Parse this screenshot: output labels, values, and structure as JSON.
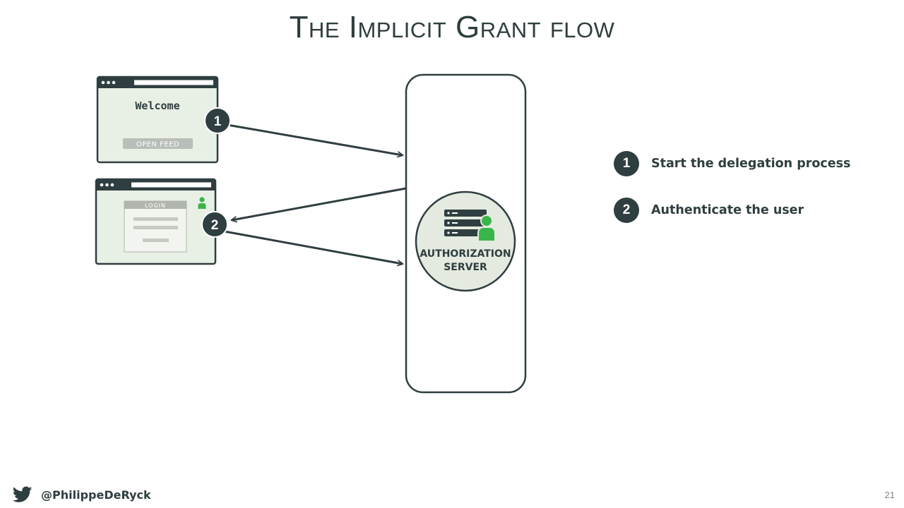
{
  "title": "The Implicit Grant flow",
  "browser1": {
    "heading": "Welcome",
    "button_label": "OPEN FEED"
  },
  "browser2": {
    "form_label": "LOGIN"
  },
  "steps": [
    {
      "number": "1",
      "label": "Start the delegation process"
    },
    {
      "number": "2",
      "label": "Authenticate the user"
    }
  ],
  "server": {
    "line1": "AUTHORIZATION",
    "line2": "SERVER"
  },
  "footer": {
    "handle": "@PhilippeDeRyck",
    "icon": "twitter-bird-icon"
  },
  "page_number": "21",
  "colors": {
    "dark": "#2f3e40",
    "panel": "#e8efe4",
    "green": "#39b54a",
    "circle": "#e4eadf"
  }
}
